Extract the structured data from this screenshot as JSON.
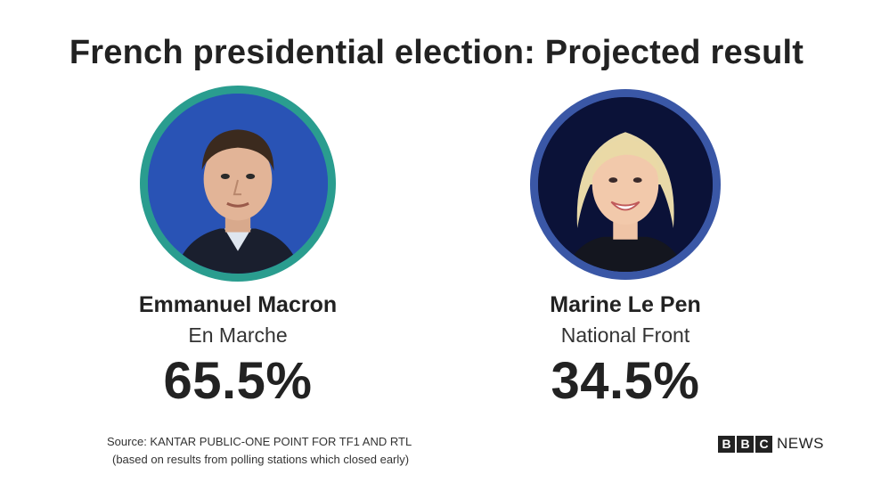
{
  "title": "French presidential election: Projected result",
  "candidates": [
    {
      "name": "Emmanuel Macron",
      "party": "En Marche",
      "percent": "65.5%",
      "ring_color": "#2a9d8f"
    },
    {
      "name": "Marine Le Pen",
      "party": "National Front",
      "percent": "34.5%",
      "ring_color": "#3a57a6"
    }
  ],
  "source": {
    "line1": "Source: KANTAR PUBLIC-ONE POINT FOR TF1 AND RTL",
    "line2": "(based on results from polling stations which closed early)"
  },
  "logo": {
    "letters": [
      "B",
      "B",
      "C"
    ],
    "word": "NEWS"
  }
}
